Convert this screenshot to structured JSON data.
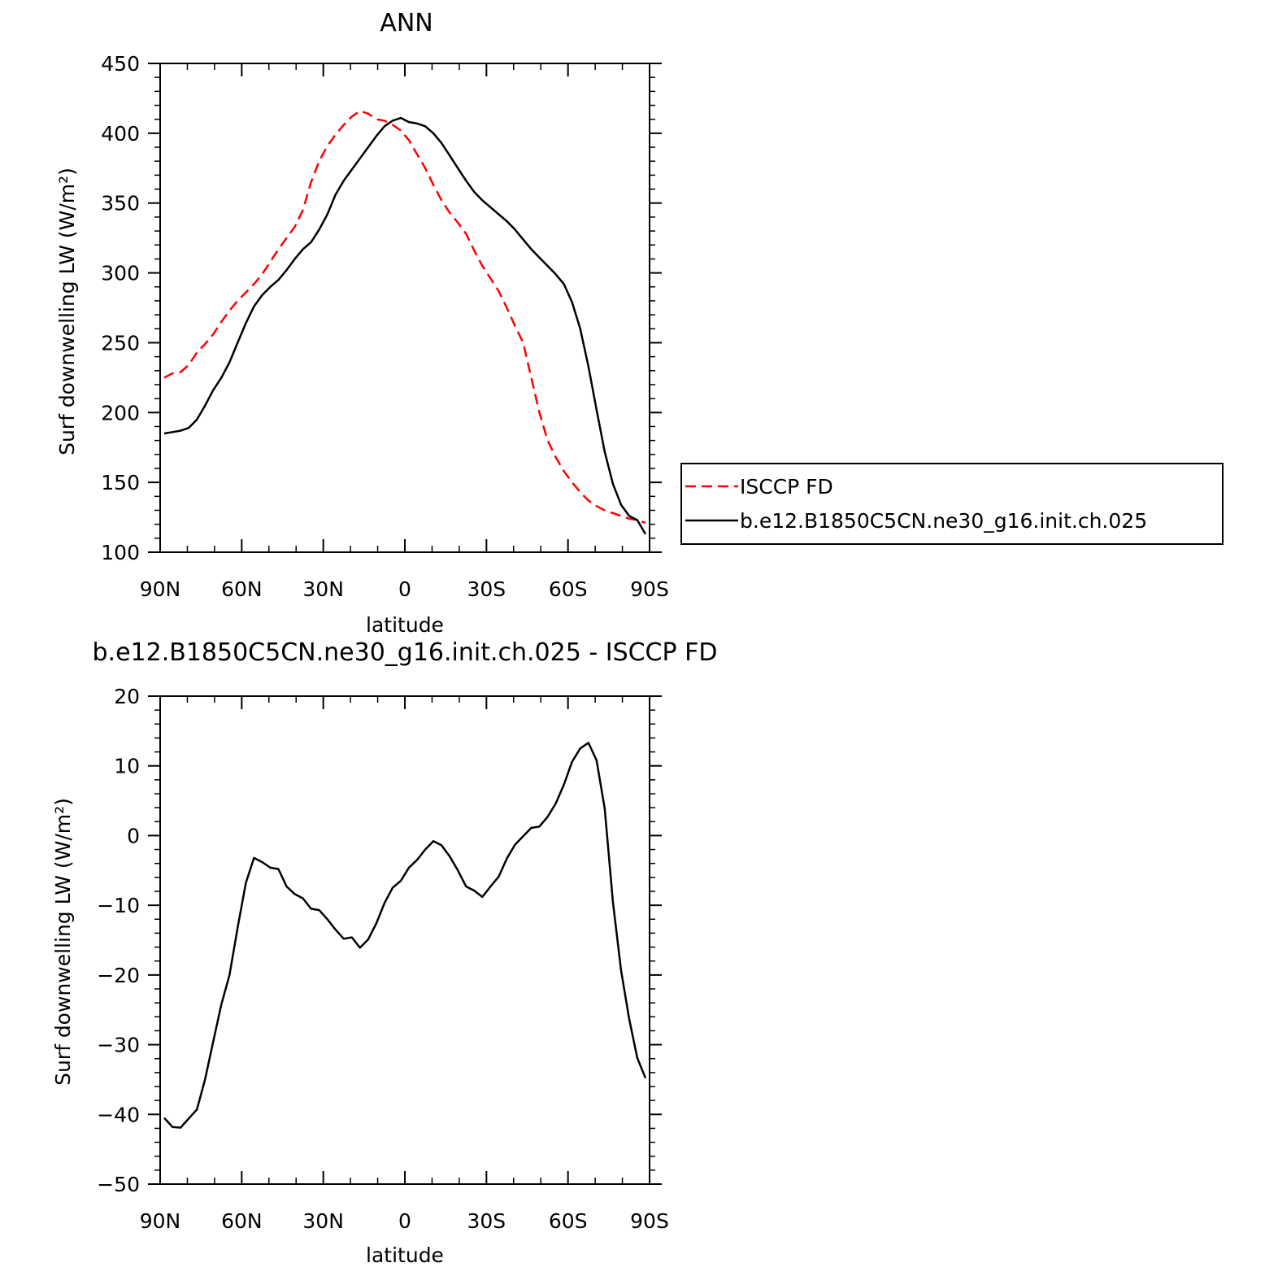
{
  "chart_data": [
    {
      "type": "line",
      "title": "ANN",
      "xlabel": "latitude",
      "ylabel": "Surf downwelling LW (W/m²)",
      "xlim": [
        90,
        -90
      ],
      "ylim": [
        100,
        450
      ],
      "xticks": [
        90,
        60,
        30,
        0,
        -30,
        -60,
        -90
      ],
      "xtick_labels": [
        "90N",
        "60N",
        "30N",
        "0",
        "30S",
        "60S",
        "90S"
      ],
      "yticks": [
        100,
        150,
        200,
        250,
        300,
        350,
        400,
        450
      ],
      "ytick_labels": [
        "100",
        "150",
        "200",
        "250",
        "300",
        "350",
        "400",
        "450"
      ],
      "legend_position": "right",
      "series": [
        {
          "name": "ISCCP FD",
          "color": "#ff0000",
          "dash": "dashed",
          "x": [
            88.5,
            85.5,
            82.5,
            79.5,
            76.5,
            73.5,
            70.5,
            67.5,
            64.5,
            61.5,
            58.5,
            55.5,
            52.5,
            49.5,
            46.5,
            43.5,
            40.5,
            37.5,
            34.5,
            31.5,
            28.5,
            25.5,
            22.5,
            19.5,
            16.5,
            13.5,
            10.5,
            7.5,
            4.5,
            1.5,
            -1.5,
            -4.5,
            -7.5,
            -10.5,
            -13.5,
            -16.5,
            -19.5,
            -22.5,
            -25.5,
            -28.5,
            -31.5,
            -34.5,
            -37.5,
            -40.5,
            -43.5,
            -46.5,
            -49.5,
            -52.5,
            -55.5,
            -58.5,
            -61.5,
            -64.5,
            -67.5,
            -70.5,
            -73.5,
            -76.5,
            -79.5,
            -82.5,
            -85.5,
            -88.5
          ],
          "y": [
            225,
            228,
            229,
            234,
            243,
            249,
            256,
            265,
            273,
            280,
            286,
            292,
            299,
            308,
            317,
            325,
            333,
            345,
            365,
            380,
            391,
            399,
            406,
            412,
            416,
            414,
            410,
            409,
            406,
            402,
            395,
            385,
            375,
            363,
            352,
            343,
            336,
            328,
            316,
            305,
            296,
            287,
            275,
            262,
            250,
            225,
            200,
            180,
            168,
            158,
            150,
            143,
            137,
            133,
            130,
            128,
            126,
            124,
            123,
            121
          ]
        },
        {
          "name": "b.e12.B1850C5CN.ne30_g16.init.ch.025",
          "color": "#000000",
          "dash": "solid",
          "x": [
            88.5,
            85.5,
            82.5,
            79.5,
            76.5,
            73.5,
            70.5,
            67.5,
            64.5,
            61.5,
            58.5,
            55.5,
            52.5,
            49.5,
            46.5,
            43.5,
            40.5,
            37.5,
            34.5,
            31.5,
            28.5,
            25.5,
            22.5,
            19.5,
            16.5,
            13.5,
            10.5,
            7.5,
            4.5,
            1.5,
            -1.5,
            -4.5,
            -7.5,
            -10.5,
            -13.5,
            -16.5,
            -19.5,
            -22.5,
            -25.5,
            -28.5,
            -31.5,
            -34.5,
            -37.5,
            -40.5,
            -43.5,
            -46.5,
            -49.5,
            -52.5,
            -55.5,
            -58.5,
            -61.5,
            -64.5,
            -67.5,
            -70.5,
            -73.5,
            -76.5,
            -79.5,
            -82.5,
            -85.5,
            -88.5
          ],
          "y": [
            185,
            186,
            187,
            189,
            195,
            205,
            216,
            225,
            236,
            250,
            264,
            276,
            284,
            290,
            295,
            302,
            310,
            317,
            322,
            331,
            342,
            356,
            366,
            374,
            382,
            390,
            398,
            405,
            409,
            411,
            408,
            407,
            405,
            400,
            393,
            384,
            375,
            366,
            358,
            352,
            347,
            342,
            337,
            331,
            324,
            317,
            311,
            305,
            299,
            292,
            279,
            260,
            233,
            202,
            172,
            149,
            134,
            126,
            123,
            113
          ]
        }
      ]
    },
    {
      "type": "line",
      "title": "b.e12.B1850C5CN.ne30_g16.init.ch.025 - ISCCP FD",
      "xlabel": "latitude",
      "ylabel": "Surf downwelling LW (W/m²)",
      "xlim": [
        90,
        -90
      ],
      "ylim": [
        -50,
        20
      ],
      "xticks": [
        90,
        60,
        30,
        0,
        -30,
        -60,
        -90
      ],
      "xtick_labels": [
        "90N",
        "60N",
        "30N",
        "0",
        "30S",
        "60S",
        "90S"
      ],
      "yticks": [
        -50,
        -40,
        -30,
        -20,
        -10,
        0,
        10,
        20
      ],
      "ytick_labels": [
        "−50",
        "−40",
        "−30",
        "−20",
        "−10",
        "0",
        "10",
        "20"
      ],
      "series": [
        {
          "color": "#000000",
          "dash": "solid",
          "x": [
            88.5,
            85.5,
            82.5,
            79.5,
            76.5,
            73.5,
            70.5,
            67.5,
            64.5,
            61.5,
            58.5,
            55.5,
            52.5,
            49.5,
            46.5,
            43.5,
            40.5,
            37.5,
            34.5,
            31.5,
            28.5,
            25.5,
            22.5,
            19.5,
            16.5,
            13.5,
            10.5,
            7.5,
            4.5,
            1.5,
            -1.5,
            -4.5,
            -7.5,
            -10.5,
            -13.5,
            -16.5,
            -19.5,
            -22.5,
            -25.5,
            -28.5,
            -31.5,
            -34.5,
            -37.5,
            -40.5,
            -43.5,
            -46.5,
            -49.5,
            -52.5,
            -55.5,
            -58.5,
            -61.5,
            -64.5,
            -67.5,
            -70.5,
            -73.5,
            -76.5,
            -79.5,
            -82.5,
            -85.5,
            -88.5
          ],
          "y": [
            -40.5,
            -41.8,
            -41.9,
            -40.6,
            -39.3,
            -35.0,
            -29.6,
            -24.2,
            -20.0,
            -13.2,
            -6.8,
            -3.2,
            -3.8,
            -4.6,
            -4.8,
            -7.3,
            -8.4,
            -9.0,
            -10.5,
            -10.7,
            -12.0,
            -13.5,
            -14.8,
            -14.6,
            -16.1,
            -14.9,
            -12.6,
            -9.7,
            -7.5,
            -6.5,
            -4.6,
            -3.5,
            -2.0,
            -0.8,
            -1.4,
            -3.0,
            -5.0,
            -7.3,
            -7.9,
            -8.8,
            -7.3,
            -5.9,
            -3.3,
            -1.3,
            -0.1,
            1.1,
            1.3,
            2.7,
            4.6,
            7.3,
            10.6,
            12.5,
            13.3,
            10.8,
            3.9,
            -9.5,
            -19.3,
            -26.3,
            -31.9,
            -34.8
          ]
        }
      ]
    }
  ]
}
